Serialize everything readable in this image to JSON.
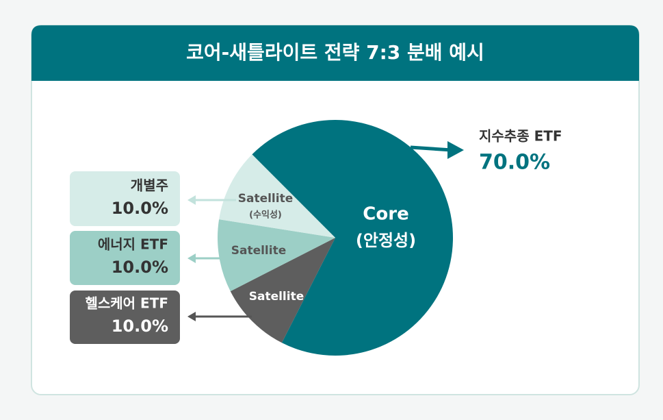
{
  "chart_data": {
    "type": "pie",
    "title": "코어-새틀라이트 전략 7:3 분배 예시",
    "categories": [
      "지수추종 ETF",
      "헬스케어 ETF",
      "에너지 ETF",
      "개별주"
    ],
    "values": [
      70,
      10,
      10,
      10
    ],
    "value_labels": [
      "70.0%",
      "10.0%",
      "10.0%",
      "10.0%"
    ],
    "colors": [
      "#00737f",
      "#5e5e5e",
      "#9ccfc6",
      "#d6ece8"
    ],
    "slices": [
      {
        "label": "Core",
        "note": "(안정성)"
      },
      {
        "label": "Satellite"
      },
      {
        "label": "Satellite"
      },
      {
        "label": "Satellite",
        "note": "(수익성)"
      }
    ]
  }
}
